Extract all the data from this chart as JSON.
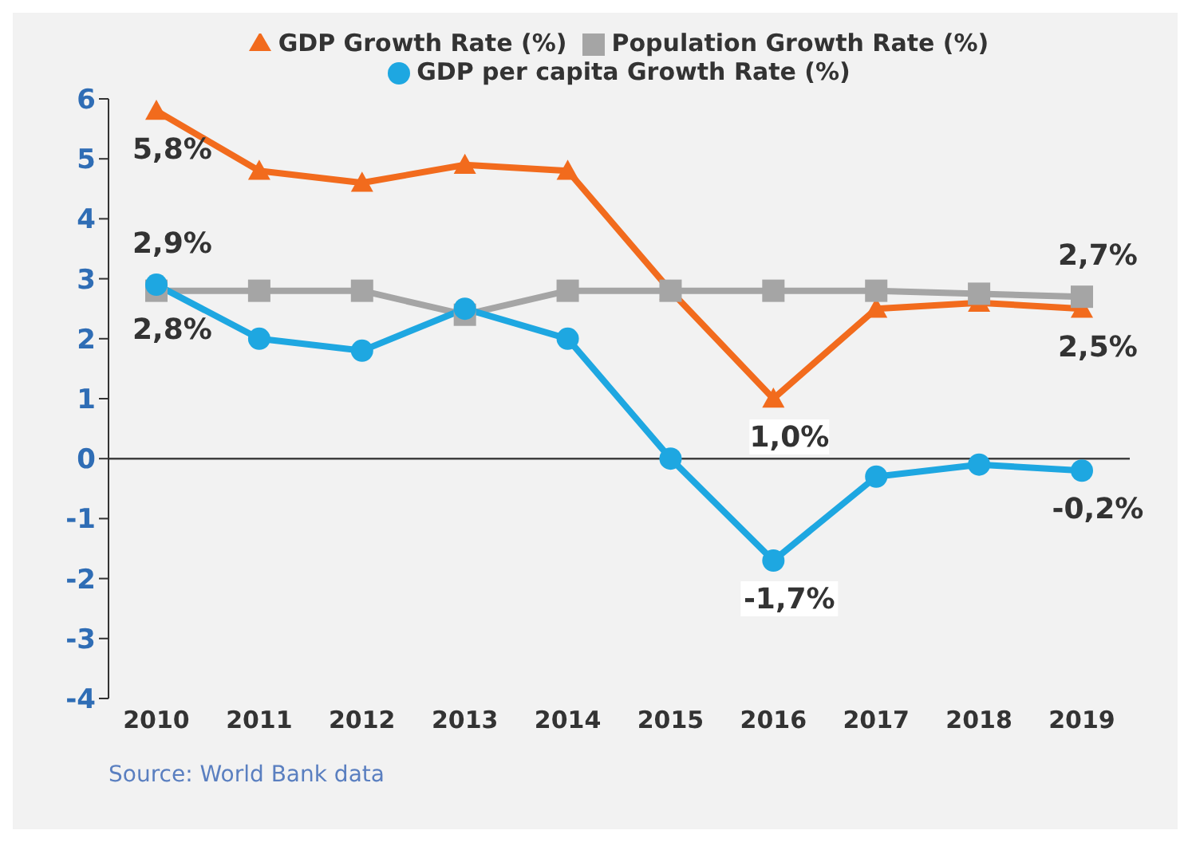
{
  "chart_data": {
    "type": "line",
    "categories": [
      "2010",
      "2011",
      "2012",
      "2013",
      "2014",
      "2015",
      "2016",
      "2017",
      "2018",
      "2019"
    ],
    "series": [
      {
        "name": "GDP Growth Rate (%)",
        "color": "#f26b1d",
        "marker": "triangle",
        "values": [
          5.8,
          4.8,
          4.6,
          4.9,
          4.8,
          2.8,
          1.0,
          2.5,
          2.6,
          2.5
        ],
        "value_labels": [
          "5,8%",
          null,
          null,
          null,
          null,
          null,
          "1,0%",
          null,
          null,
          "2,5%"
        ]
      },
      {
        "name": "Population Growth Rate (%)",
        "color": "#a5a5a5",
        "marker": "square",
        "values": [
          2.8,
          2.8,
          2.8,
          2.4,
          2.8,
          2.8,
          2.8,
          2.8,
          2.75,
          2.7
        ],
        "value_labels": [
          "2,8%",
          null,
          null,
          null,
          null,
          null,
          null,
          null,
          null,
          "2,7%"
        ]
      },
      {
        "name": "GDP per capita Growth Rate (%)",
        "color": "#1ea7e1",
        "marker": "circle",
        "values": [
          2.9,
          2.0,
          1.8,
          2.5,
          2.0,
          0.0,
          -1.7,
          -0.3,
          -0.1,
          -0.2
        ],
        "value_labels": [
          "2,9%",
          null,
          null,
          null,
          null,
          null,
          "-1,7%",
          null,
          null,
          "-0,2%"
        ]
      }
    ],
    "ylim": [
      -4,
      6
    ],
    "yticks": [
      -4,
      -3,
      -2,
      -1,
      0,
      1,
      2,
      3,
      4,
      5,
      6
    ],
    "grid": false,
    "legend": "top",
    "ref_lines": [
      {
        "axis": "y",
        "value": 0,
        "color": "#404040"
      }
    ],
    "annotations": [
      "Source: World Bank data"
    ]
  }
}
